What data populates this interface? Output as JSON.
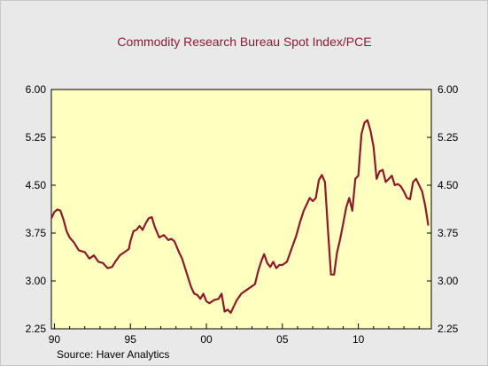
{
  "chart_data": {
    "type": "line",
    "title": "Commodity Research Bureau Spot Index/PCE",
    "source": "Source: Haver Analytics",
    "xlabel": "",
    "ylabel": "",
    "xlim": [
      1989.8,
      2014.8
    ],
    "ylim": [
      2.25,
      6.0
    ],
    "y_ticks": [
      "6.00",
      "5.25",
      "4.50",
      "3.75",
      "3.00",
      "2.25"
    ],
    "y_tick_values": [
      6.0,
      5.25,
      4.5,
      3.75,
      3.0,
      2.25
    ],
    "x_ticks": [
      "90",
      "95",
      "00",
      "05",
      "10"
    ],
    "x_tick_values": [
      1990,
      1995,
      2000,
      2005,
      2010
    ],
    "grid": false,
    "legend": "none",
    "plot_background": "#ffffc0",
    "series": [
      {
        "color": "#8b1a2a",
        "x": [
          1989.8,
          1990.0,
          1990.2,
          1990.4,
          1990.6,
          1990.8,
          1991.0,
          1991.3,
          1991.6,
          1992.0,
          1992.3,
          1992.6,
          1992.9,
          1993.2,
          1993.5,
          1993.8,
          1994.0,
          1994.3,
          1994.6,
          1994.9,
          1995.0,
          1995.2,
          1995.4,
          1995.6,
          1995.8,
          1996.0,
          1996.2,
          1996.4,
          1996.6,
          1996.9,
          1997.2,
          1997.5,
          1997.7,
          1997.9,
          1998.2,
          1998.4,
          1998.6,
          1998.8,
          1999.0,
          1999.2,
          1999.4,
          1999.6,
          1999.8,
          2000.0,
          2000.2,
          2000.5,
          2000.8,
          2001.0,
          2001.2,
          2001.4,
          2001.6,
          2001.8,
          2002.0,
          2002.3,
          2002.6,
          2002.9,
          2003.2,
          2003.4,
          2003.6,
          2003.8,
          2004.0,
          2004.2,
          2004.4,
          2004.6,
          2004.8,
          2005.0,
          2005.3,
          2005.6,
          2005.9,
          2006.2,
          2006.4,
          2006.6,
          2006.8,
          2007.0,
          2007.2,
          2007.4,
          2007.6,
          2007.8,
          2008.0,
          2008.2,
          2008.4,
          2008.6,
          2008.8,
          2009.0,
          2009.2,
          2009.4,
          2009.6,
          2009.8,
          2010.0,
          2010.2,
          2010.4,
          2010.6,
          2010.8,
          2011.0,
          2011.2,
          2011.4,
          2011.6,
          2011.8,
          2012.0,
          2012.2,
          2012.4,
          2012.6,
          2012.8,
          2013.0,
          2013.2,
          2013.4,
          2013.6,
          2013.8,
          2014.0,
          2014.2,
          2014.4,
          2014.6
        ],
        "y": [
          3.98,
          4.08,
          4.12,
          4.1,
          3.96,
          3.78,
          3.68,
          3.6,
          3.48,
          3.45,
          3.35,
          3.4,
          3.3,
          3.28,
          3.2,
          3.22,
          3.3,
          3.4,
          3.45,
          3.5,
          3.62,
          3.78,
          3.8,
          3.86,
          3.8,
          3.9,
          3.98,
          4.0,
          3.85,
          3.68,
          3.72,
          3.64,
          3.66,
          3.62,
          3.45,
          3.35,
          3.2,
          3.05,
          2.9,
          2.8,
          2.78,
          2.72,
          2.8,
          2.68,
          2.65,
          2.7,
          2.72,
          2.8,
          2.52,
          2.55,
          2.5,
          2.6,
          2.7,
          2.8,
          2.85,
          2.9,
          2.95,
          3.15,
          3.3,
          3.42,
          3.28,
          3.22,
          3.3,
          3.2,
          3.25,
          3.25,
          3.3,
          3.5,
          3.7,
          3.95,
          4.1,
          4.2,
          4.3,
          4.25,
          4.3,
          4.58,
          4.66,
          4.55,
          3.8,
          3.1,
          3.1,
          3.45,
          3.65,
          3.9,
          4.15,
          4.3,
          4.1,
          4.6,
          4.65,
          5.3,
          5.48,
          5.52,
          5.35,
          5.1,
          4.6,
          4.72,
          4.74,
          4.55,
          4.6,
          4.65,
          4.5,
          4.52,
          4.48,
          4.4,
          4.3,
          4.28,
          4.55,
          4.6,
          4.5,
          4.4,
          4.18,
          3.87
        ]
      }
    ]
  }
}
